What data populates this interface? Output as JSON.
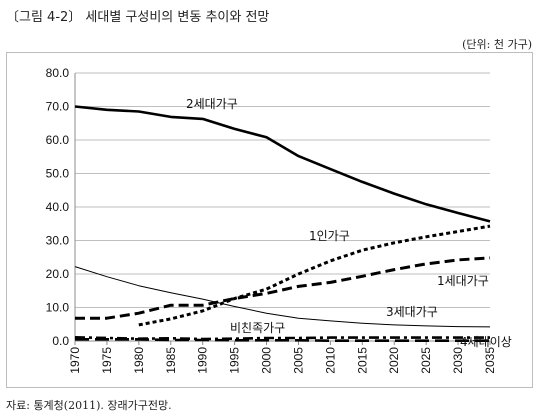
{
  "header": {
    "title": "〔그림 4-2〕 세대별 구성비의 변동 추이와 전망",
    "unit": "(단위: 천 가구)"
  },
  "footer": {
    "source": "자료: 통계청(2011). 장래가구전망."
  },
  "chart_data": {
    "type": "line",
    "x": [
      1970,
      1975,
      1980,
      1985,
      1990,
      1995,
      2000,
      2005,
      2010,
      2015,
      2020,
      2025,
      2030,
      2035
    ],
    "ylim": [
      0,
      80
    ],
    "yticks": [
      "0.0",
      "10.0",
      "20.0",
      "30.0",
      "40.0",
      "50.0",
      "60.0",
      "70.0",
      "80.0"
    ],
    "xticks": [
      "1970",
      "1975",
      "1980",
      "1985",
      "1990",
      "1995",
      "2000",
      "2005",
      "2010",
      "2015",
      "2020",
      "2025",
      "2030",
      "2035"
    ],
    "grid": "horizontal",
    "legend": "none",
    "series": [
      {
        "name": "2세대가구",
        "style": "solid",
        "width": 2.6,
        "color": "#000000",
        "values": [
          70.0,
          69.0,
          68.5,
          66.9,
          66.3,
          63.3,
          60.8,
          55.2,
          51.3,
          47.5,
          44.0,
          40.8,
          38.2,
          35.7
        ]
      },
      {
        "name": "1인가구",
        "style": "dotted",
        "width": 3.0,
        "color": "#000000",
        "values": [
          null,
          null,
          4.8,
          6.6,
          9.0,
          12.7,
          15.5,
          20.0,
          23.9,
          27.1,
          29.3,
          31.1,
          32.7,
          34.3
        ]
      },
      {
        "name": "1세대가구",
        "style": "dashed",
        "width": 3.0,
        "color": "#000000",
        "values": [
          6.8,
          6.8,
          8.3,
          10.7,
          10.7,
          12.7,
          14.2,
          16.3,
          17.5,
          19.3,
          21.3,
          23.0,
          24.2,
          24.8
        ]
      },
      {
        "name": "3세대가구",
        "style": "solid",
        "width": 1.0,
        "color": "#000000",
        "values": [
          22.2,
          19.2,
          16.5,
          14.4,
          12.5,
          10.3,
          8.3,
          6.8,
          6.0,
          5.3,
          4.8,
          4.5,
          4.3,
          4.2
        ]
      },
      {
        "name": "비친족가구",
        "style": "dashdot",
        "width": 2.6,
        "color": "#000000",
        "values": [
          1.1,
          0.9,
          0.7,
          0.8,
          0.6,
          0.7,
          0.9,
          0.9,
          1.0,
          1.0,
          1.0,
          1.0,
          1.0,
          1.0
        ]
      },
      {
        "name": "4세대이상",
        "style": "longdash",
        "width": 2.6,
        "color": "#000000",
        "values": [
          0.5,
          0.5,
          0.5,
          0.3,
          0.3,
          0.2,
          0.2,
          0.2,
          0.1,
          0.1,
          0.1,
          0.1,
          0.1,
          0.1
        ]
      }
    ]
  }
}
